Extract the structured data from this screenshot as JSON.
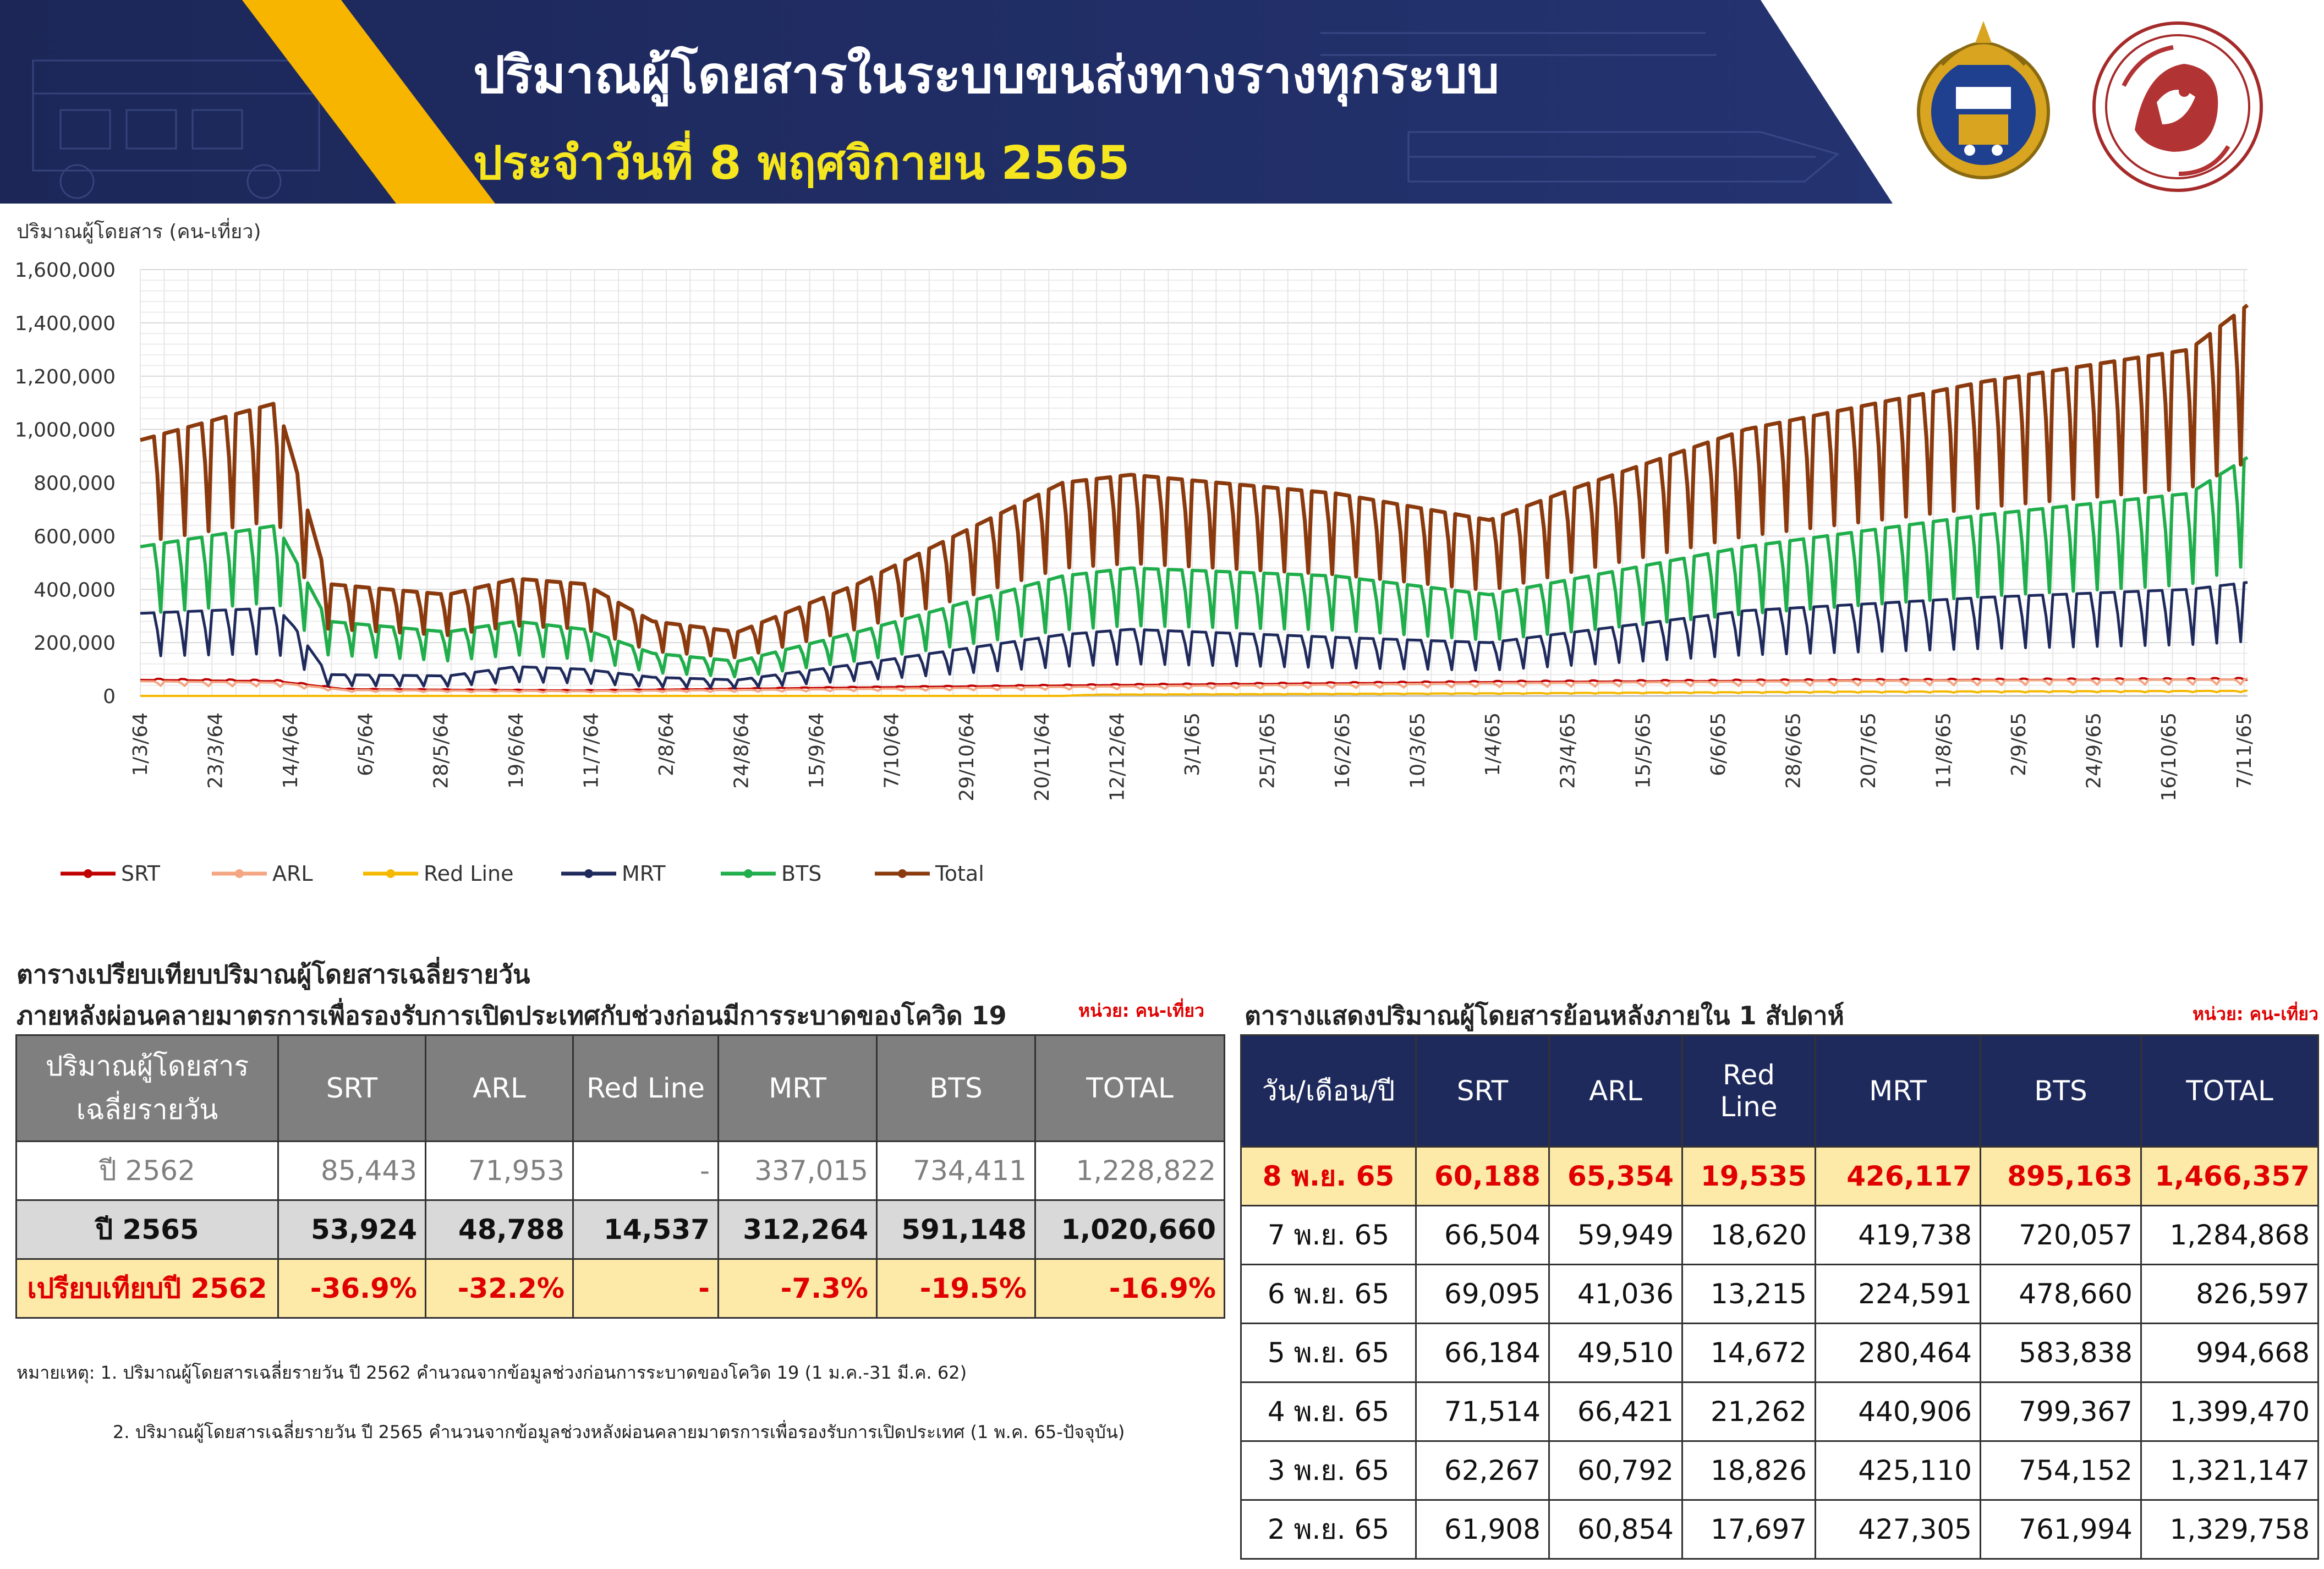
{
  "header": {
    "title": "ปริมาณผู้โดยสารในระบบขนส่งทางรางทุกระบบ",
    "subtitle": "ประจำวันที่ 8 พฤศจิกายน 2565"
  },
  "colors": {
    "banner_navy": "#1f2a5c",
    "banner_stripe": "#f7b500",
    "srt": "#c00000",
    "arl": "#f4a582",
    "red_line": "#f5b800",
    "mrt": "#1f2a5c",
    "bts": "#1fae4b",
    "total": "#8b3a0e",
    "highlight_bg": "#fde9a8",
    "negative_text": "#e00000"
  },
  "chart_data": {
    "type": "line",
    "ylabel": "ปริมาณผู้โดยสาร (คน-เที่ยว)",
    "ylim": [
      0,
      1600000
    ],
    "yticks": [
      "0",
      "200,000",
      "400,000",
      "600,000",
      "800,000",
      "1,000,000",
      "1,200,000",
      "1,400,000",
      "1,600,000"
    ],
    "x_range": [
      "2021-03-01",
      "2022-11-08"
    ],
    "x_tick_labels": [
      "1/3/64",
      "23/3/64",
      "14/4/64",
      "6/5/64",
      "28/5/64",
      "19/6/64",
      "11/7/64",
      "2/8/64",
      "24/8/64",
      "15/9/64",
      "7/10/64",
      "29/10/64",
      "20/11/64",
      "12/12/64",
      "3/1/65",
      "25/1/65",
      "16/2/65",
      "10/3/65",
      "1/4/65",
      "23/4/65",
      "15/5/65",
      "6/6/65",
      "28/6/65",
      "20/7/65",
      "11/8/65",
      "2/9/65",
      "24/9/65",
      "16/10/65",
      "7/11/65"
    ],
    "grid": true,
    "legend_position": "bottom",
    "series": [
      {
        "name": "SRT",
        "weekday_level": [
          [
            0,
            60000
          ],
          [
            40,
            55000
          ],
          [
            60,
            25000
          ],
          [
            130,
            20000
          ],
          [
            200,
            30000
          ],
          [
            280,
            40000
          ],
          [
            400,
            52000
          ],
          [
            500,
            58000
          ],
          [
            617,
            62000
          ]
        ],
        "weekend_ratio": 1.08,
        "last": 60188
      },
      {
        "name": "ARL",
        "weekday_level": [
          [
            0,
            55000
          ],
          [
            40,
            50000
          ],
          [
            60,
            22000
          ],
          [
            130,
            18000
          ],
          [
            200,
            25000
          ],
          [
            280,
            35000
          ],
          [
            400,
            48000
          ],
          [
            500,
            56000
          ],
          [
            617,
            62000
          ]
        ],
        "weekend_ratio": 0.7,
        "last": 65354
      },
      {
        "name": "Red Line",
        "weekday_level": [
          [
            0,
            0
          ],
          [
            270,
            0
          ],
          [
            280,
            5000
          ],
          [
            400,
            10000
          ],
          [
            500,
            16000
          ],
          [
            617,
            19000
          ]
        ],
        "weekend_ratio": 0.75,
        "last": 19535
      },
      {
        "name": "MRT",
        "weekday_level": [
          [
            0,
            310000
          ],
          [
            40,
            330000
          ],
          [
            45,
            260000
          ],
          [
            55,
            80000
          ],
          [
            90,
            75000
          ],
          [
            110,
            110000
          ],
          [
            130,
            100000
          ],
          [
            150,
            70000
          ],
          [
            175,
            60000
          ],
          [
            210,
            120000
          ],
          [
            270,
            230000
          ],
          [
            290,
            250000
          ],
          [
            350,
            220000
          ],
          [
            395,
            200000
          ],
          [
            420,
            240000
          ],
          [
            470,
            320000
          ],
          [
            540,
            370000
          ],
          [
            600,
            400000
          ],
          [
            617,
            426117
          ]
        ],
        "weekend_ratio": 0.48,
        "last": 426117
      },
      {
        "name": "BTS",
        "weekday_level": [
          [
            0,
            560000
          ],
          [
            40,
            640000
          ],
          [
            45,
            520000
          ],
          [
            55,
            280000
          ],
          [
            90,
            240000
          ],
          [
            110,
            280000
          ],
          [
            130,
            250000
          ],
          [
            150,
            160000
          ],
          [
            175,
            130000
          ],
          [
            210,
            240000
          ],
          [
            270,
            450000
          ],
          [
            290,
            480000
          ],
          [
            350,
            450000
          ],
          [
            395,
            380000
          ],
          [
            420,
            440000
          ],
          [
            470,
            560000
          ],
          [
            540,
            680000
          ],
          [
            600,
            760000
          ],
          [
            617,
            895163
          ]
        ],
        "weekend_ratio": 0.55,
        "last": 895163
      },
      {
        "name": "Total",
        "weekday_level": [
          [
            0,
            960000
          ],
          [
            40,
            1100000
          ],
          [
            45,
            880000
          ],
          [
            55,
            420000
          ],
          [
            90,
            380000
          ],
          [
            110,
            440000
          ],
          [
            130,
            420000
          ],
          [
            150,
            280000
          ],
          [
            175,
            240000
          ],
          [
            210,
            420000
          ],
          [
            270,
            800000
          ],
          [
            290,
            830000
          ],
          [
            350,
            760000
          ],
          [
            395,
            660000
          ],
          [
            420,
            780000
          ],
          [
            470,
            1000000
          ],
          [
            540,
            1180000
          ],
          [
            600,
            1300000
          ],
          [
            617,
            1466357
          ]
        ],
        "weekend_ratio": 0.6,
        "last": 1466357
      }
    ]
  },
  "left_table": {
    "heading1": "ตารางเปรียบเทียบปริมาณผู้โดยสารเฉลี่ยรายวัน",
    "heading2": "ภายหลังผ่อนคลายมาตรการเพื่อรองรับการเปิดประเทศกับช่วงก่อนมีการระบาดของโควิด 19",
    "unit": "หน่วย: คน-เที่ยว",
    "header": [
      "ปริมาณผู้โดยสาร\nเฉลี่ยรายวัน",
      "SRT",
      "ARL",
      "Red Line",
      "MRT",
      "BTS",
      "TOTAL"
    ],
    "rows": [
      [
        "ปี 2562",
        "85,443",
        "71,953",
        "-",
        "337,015",
        "734,411",
        "1,228,822"
      ],
      [
        "ปี 2565",
        "53,924",
        "48,788",
        "14,537",
        "312,264",
        "591,148",
        "1,020,660"
      ],
      [
        "เปรียบเทียบปี 2562",
        "-36.9%",
        "-32.2%",
        "-",
        "-7.3%",
        "-19.5%",
        "-16.9%"
      ]
    ]
  },
  "right_table": {
    "heading": "ตารางแสดงปริมาณผู้โดยสารย้อนหลังภายใน 1 สัปดาห์",
    "unit": "หน่วย: คน-เที่ยว",
    "header": [
      "วัน/เดือน/ปี",
      "SRT",
      "ARL",
      "Red Line",
      "MRT",
      "BTS",
      "TOTAL"
    ],
    "rows": [
      [
        "8 พ.ย. 65",
        "60,188",
        "65,354",
        "19,535",
        "426,117",
        "895,163",
        "1,466,357"
      ],
      [
        "7 พ.ย. 65",
        "66,504",
        "59,949",
        "18,620",
        "419,738",
        "720,057",
        "1,284,868"
      ],
      [
        "6 พ.ย. 65",
        "69,095",
        "41,036",
        "13,215",
        "224,591",
        "478,660",
        "826,597"
      ],
      [
        "5 พ.ย. 65",
        "66,184",
        "49,510",
        "14,672",
        "280,464",
        "583,838",
        "994,668"
      ],
      [
        "4 พ.ย. 65",
        "71,514",
        "66,421",
        "21,262",
        "440,906",
        "799,367",
        "1,399,470"
      ],
      [
        "3 พ.ย. 65",
        "62,267",
        "60,792",
        "18,826",
        "425,110",
        "754,152",
        "1,321,147"
      ],
      [
        "2 พ.ย. 65",
        "61,908",
        "60,854",
        "17,697",
        "427,305",
        "761,994",
        "1,329,758"
      ]
    ]
  },
  "notes": {
    "note1": "หมายเหตุ:  1. ปริมาณผู้โดยสารเฉลี่ยรายวัน ปี 2562 คำนวณจากข้อมูลช่วงก่อนการระบาดของโควิด 19 (1 ม.ค.-31 มี.ค. 62)",
    "note2": "2. ปริมาณผู้โดยสารเฉลี่ยรายวัน ปี 2565 คำนวนจากข้อมูลช่วงหลังผ่อนคลายมาตรการเพื่อรองรับการเปิดประเทศ (1 พ.ค. 65-ปัจจุบัน)"
  },
  "logos": {
    "drt": "department-of-rail-transport-seal",
    "mot": "ministry-of-transport-seal"
  }
}
